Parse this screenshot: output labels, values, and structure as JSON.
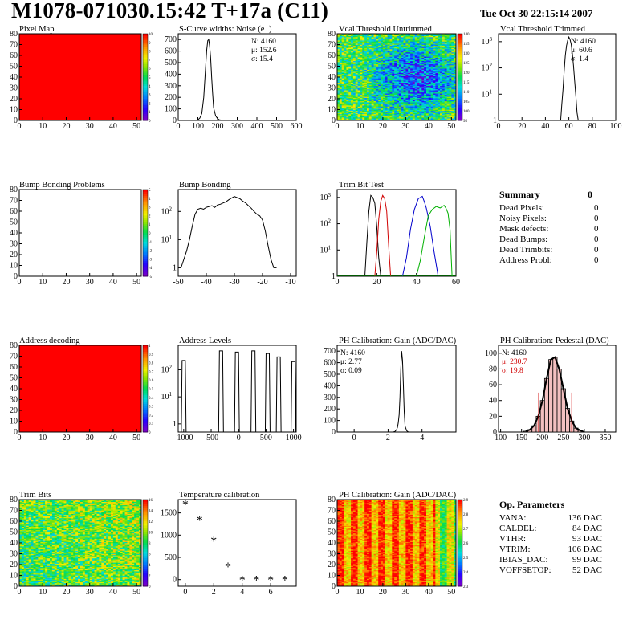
{
  "header": {
    "title": "M1078-071030.15:42 T+17a (C11)",
    "date": "Tue Oct 30 22:15:14 2007"
  },
  "chart_data": [
    {
      "id": "pixel-map",
      "type": "heatmap",
      "title": "Pixel Map",
      "xlim": [
        0,
        52
      ],
      "ylim": [
        0,
        80
      ],
      "xticks": [
        0,
        10,
        20,
        30,
        40,
        50
      ],
      "yticks": [
        0,
        10,
        20,
        30,
        40,
        50,
        60,
        70,
        80
      ],
      "fill": "uniform",
      "fill_level": 10,
      "palette_ticks": [
        "10",
        "9",
        "8",
        "7",
        "6",
        "5",
        "4",
        "3",
        "2",
        "1",
        "0"
      ]
    },
    {
      "id": "scurve-noise",
      "type": "line",
      "title": "S-Curve widths: Noise (e⁻)",
      "xlim": [
        0,
        600
      ],
      "ylim": [
        0,
        750
      ],
      "xticks": [
        0,
        100,
        200,
        300,
        400,
        500,
        600
      ],
      "yticks": [
        0,
        100,
        200,
        300,
        400,
        500,
        600,
        700
      ],
      "x": [
        90,
        100,
        110,
        120,
        130,
        140,
        145,
        150,
        155,
        160,
        165,
        170,
        175,
        180,
        190,
        200,
        210,
        220,
        230,
        240,
        260
      ],
      "y": [
        0,
        5,
        20,
        60,
        200,
        480,
        610,
        690,
        700,
        640,
        540,
        380,
        230,
        110,
        40,
        15,
        5,
        3,
        2,
        1,
        0
      ],
      "stats": [
        {
          "label": "N: 4160"
        },
        {
          "label": "μ: 152.6"
        },
        {
          "label": "σ: 15.4"
        }
      ]
    },
    {
      "id": "vcal-untrimmed",
      "type": "heatmap",
      "title": "Vcal Threshold Untrimmed",
      "xlim": [
        0,
        52
      ],
      "ylim": [
        0,
        80
      ],
      "xticks": [
        0,
        10,
        20,
        30,
        40,
        50
      ],
      "yticks": [
        0,
        10,
        20,
        30,
        40,
        50,
        60,
        70,
        80
      ],
      "fill": "noise-threshold",
      "palette_ticks": [
        "140",
        "135",
        "130",
        "125",
        "120",
        "115",
        "110",
        "105",
        "100",
        "95"
      ]
    },
    {
      "id": "vcal-trimmed",
      "type": "line",
      "title": "Vcal Threshold Trimmed",
      "logy": true,
      "xlim": [
        0,
        100
      ],
      "ylim": [
        1,
        2000
      ],
      "xticks": [
        0,
        20,
        40,
        60,
        80,
        100
      ],
      "yticks": [
        1,
        10,
        100,
        1000
      ],
      "x": [
        52,
        53,
        54,
        55,
        56,
        57,
        58,
        59,
        60,
        61,
        62,
        63,
        64,
        65,
        66,
        67,
        68
      ],
      "y": [
        1,
        1,
        4,
        15,
        80,
        300,
        700,
        1100,
        1500,
        1200,
        800,
        350,
        120,
        30,
        8,
        2,
        1
      ],
      "stats": [
        {
          "label": "N: 4160"
        },
        {
          "label": "μ: 60.6"
        },
        {
          "label": "σ:  1.4"
        }
      ]
    },
    {
      "id": "bump-problems",
      "type": "heatmap",
      "title": "Bump Bonding Problems",
      "xlim": [
        0,
        52
      ],
      "ylim": [
        0,
        80
      ],
      "xticks": [
        0,
        10,
        20,
        30,
        40,
        50
      ],
      "yticks": [
        0,
        10,
        20,
        30,
        40,
        50,
        60,
        70,
        80
      ],
      "fill": "empty",
      "palette_ticks": [
        "5",
        "4",
        "3",
        "2",
        "1",
        "0",
        "-1",
        "-2",
        "-3",
        "-4",
        "-5"
      ]
    },
    {
      "id": "bump-bonding",
      "type": "line",
      "title": "Bump Bonding",
      "logy": true,
      "xlim": [
        -50,
        -8
      ],
      "ylim": [
        0.5,
        600
      ],
      "xticks": [
        -50,
        -40,
        -30,
        -20,
        -10
      ],
      "yticks": [
        1,
        10,
        100
      ],
      "x": [
        -49,
        -48,
        -47,
        -46,
        -45,
        -44,
        -43,
        -42,
        -41,
        -40,
        -39,
        -38,
        -37,
        -36,
        -35,
        -34,
        -33,
        -32,
        -31,
        -30,
        -29,
        -28,
        -27,
        -26,
        -25,
        -24,
        -23,
        -22,
        -21,
        -20,
        -19,
        -18,
        -17,
        -16,
        -15
      ],
      "y": [
        1,
        2,
        4,
        10,
        30,
        80,
        120,
        130,
        120,
        140,
        150,
        160,
        140,
        170,
        180,
        200,
        220,
        260,
        300,
        340,
        310,
        280,
        230,
        200,
        160,
        130,
        100,
        80,
        70,
        50,
        20,
        6,
        2,
        1,
        1
      ]
    },
    {
      "id": "trim-bit-test",
      "type": "line",
      "title": "Trim Bit Test",
      "logy": true,
      "xlim": [
        0,
        60
      ],
      "ylim": [
        1,
        2000
      ],
      "xticks": [
        0,
        20,
        40,
        60
      ],
      "yticks": [
        1,
        10,
        100,
        1000
      ],
      "series": [
        {
          "color": "#000000",
          "x": [
            14,
            15,
            16,
            17,
            18,
            19,
            20,
            21,
            22
          ],
          "y": [
            1,
            20,
            300,
            1200,
            1000,
            600,
            80,
            5,
            1
          ]
        },
        {
          "color": "#d00000",
          "x": [
            19,
            20,
            21,
            22,
            23,
            24,
            25,
            26,
            27
          ],
          "y": [
            1,
            8,
            150,
            700,
            1200,
            900,
            300,
            15,
            1
          ]
        },
        {
          "color": "#0000cc",
          "x": [
            33,
            35,
            37,
            39,
            41,
            43,
            44,
            45,
            47,
            49,
            51
          ],
          "y": [
            1,
            5,
            60,
            350,
            900,
            1100,
            700,
            400,
            80,
            8,
            1
          ]
        },
        {
          "color": "#00b000",
          "x": [
            40,
            42,
            44,
            46,
            48,
            50,
            52,
            54,
            55,
            56,
            57,
            58
          ],
          "y": [
            1,
            4,
            30,
            200,
            350,
            450,
            400,
            500,
            380,
            250,
            60,
            1
          ]
        }
      ]
    },
    {
      "id": "address-decoding",
      "type": "heatmap",
      "title": "Address decoding",
      "xlim": [
        0,
        52
      ],
      "ylim": [
        0,
        80
      ],
      "xticks": [
        0,
        10,
        20,
        30,
        40,
        50
      ],
      "yticks": [
        0,
        10,
        20,
        30,
        40,
        50,
        60,
        70,
        80
      ],
      "fill": "uniform",
      "fill_level": 1,
      "palette_ticks": [
        "1",
        "0.9",
        "0.8",
        "0.7",
        "0.6",
        "0.5",
        "0.4",
        "0.3",
        "0.2",
        "0.1",
        "0"
      ]
    },
    {
      "id": "address-levels",
      "type": "line",
      "title": "Address Levels",
      "logy": true,
      "xlim": [
        -1100,
        1050
      ],
      "ylim": [
        0.5,
        800
      ],
      "xticks": [
        -1000,
        -500,
        0,
        500,
        1000
      ],
      "yticks": [
        1,
        10,
        100
      ],
      "peaks": [
        {
          "x": -1000,
          "h": 220
        },
        {
          "x": -320,
          "h": 500
        },
        {
          "x": -30,
          "h": 450
        },
        {
          "x": 270,
          "h": 500
        },
        {
          "x": 530,
          "h": 400
        },
        {
          "x": 730,
          "h": 300
        },
        {
          "x": 1000,
          "h": 200
        }
      ]
    },
    {
      "id": "ph-gain",
      "type": "line",
      "title": "PH Calibration: Gain (ADC/DAC)",
      "xlim": [
        -1,
        6
      ],
      "ylim": [
        0,
        750
      ],
      "xticks": [
        0,
        2,
        4
      ],
      "yticks": [
        0,
        100,
        200,
        300,
        400,
        500,
        600,
        700
      ],
      "x": [
        2.3,
        2.4,
        2.5,
        2.55,
        2.6,
        2.65,
        2.7,
        2.75,
        2.8,
        2.85,
        2.9,
        2.95,
        3.0,
        3.1,
        3.2
      ],
      "y": [
        0,
        5,
        20,
        40,
        80,
        150,
        300,
        550,
        700,
        620,
        400,
        180,
        50,
        10,
        0
      ],
      "stats": [
        {
          "label": "N: 4160"
        },
        {
          "label": "μ: 2.77"
        },
        {
          "label": "σ: 0.09"
        }
      ]
    },
    {
      "id": "ph-pedestal",
      "type": "bar",
      "title": "PH Calibration: Pedestal (DAC)",
      "xlim": [
        95,
        375
      ],
      "ylim": [
        0,
        110
      ],
      "xticks": [
        100,
        150,
        200,
        250,
        300,
        350
      ],
      "yticks": [
        0,
        20,
        40,
        60,
        80,
        100
      ],
      "x": [
        160,
        170,
        180,
        190,
        200,
        210,
        220,
        230,
        240,
        250,
        260,
        270,
        280,
        290,
        300
      ],
      "y": [
        1,
        3,
        8,
        20,
        40,
        68,
        92,
        95,
        80,
        55,
        30,
        14,
        5,
        2,
        0
      ],
      "cut_lines": [
        191,
        270
      ],
      "stats": [
        {
          "label": "N: 4160",
          "color": "#000000"
        },
        {
          "label": "μ: 230.7",
          "color": "#d00000"
        },
        {
          "label": "σ: 19.8",
          "color": "#d00000"
        }
      ]
    },
    {
      "id": "trim-bits",
      "type": "heatmap",
      "title": "Trim Bits",
      "xlim": [
        0,
        52
      ],
      "ylim": [
        0,
        80
      ],
      "xticks": [
        0,
        10,
        20,
        30,
        40,
        50
      ],
      "yticks": [
        0,
        10,
        20,
        30,
        40,
        50,
        60,
        70,
        80
      ],
      "fill": "trim-noise",
      "palette_ticks": [
        "16",
        "14",
        "12",
        "10",
        "8",
        "6",
        "4",
        "2",
        "0"
      ]
    },
    {
      "id": "temp-calibration",
      "type": "scatter",
      "title": "Temperature calibration",
      "xlim": [
        -0.5,
        7.8
      ],
      "ylim": [
        -150,
        1800
      ],
      "xticks": [
        0,
        2,
        4,
        6
      ],
      "yticks": [
        0,
        500,
        1000,
        1500
      ],
      "x": [
        0,
        1,
        2,
        3,
        4,
        5,
        6,
        7
      ],
      "y": [
        1700,
        1350,
        880,
        300,
        0,
        0,
        0,
        0
      ]
    },
    {
      "id": "ph-gain-map",
      "type": "heatmap",
      "title": "PH Calibration: Gain (ADC/DAC)",
      "xlim": [
        0,
        52
      ],
      "ylim": [
        0,
        80
      ],
      "xticks": [
        0,
        10,
        20,
        30,
        40,
        50
      ],
      "yticks": [
        0,
        10,
        20,
        30,
        40,
        50,
        60,
        70,
        80
      ],
      "fill": "gain-columns",
      "palette_ticks": [
        "2.9",
        "2.8",
        "2.7",
        "2.6",
        "2.5",
        "2.4",
        "2.3"
      ]
    }
  ],
  "summary": {
    "heading": "Summary",
    "total": "0",
    "rows": [
      {
        "label": "Dead Pixels:",
        "value": "0"
      },
      {
        "label": "Noisy Pixels:",
        "value": "0"
      },
      {
        "label": "Mask defects:",
        "value": "0"
      },
      {
        "label": "Dead Bumps:",
        "value": "0"
      },
      {
        "label": "Dead Trimbits:",
        "value": "0"
      },
      {
        "label": "Address Probl:",
        "value": "0"
      }
    ]
  },
  "op_params": {
    "heading": "Op. Parameters",
    "rows": [
      {
        "label": "VANA:",
        "value": "136 DAC"
      },
      {
        "label": "CALDEL:",
        "value": "84 DAC"
      },
      {
        "label": "VTHR:",
        "value": "93 DAC"
      },
      {
        "label": "VTRIM:",
        "value": "106 DAC"
      },
      {
        "label": "IBIAS_DAC:",
        "value": "99 DAC"
      },
      {
        "label": "VOFFSETOP:",
        "value": "52 DAC"
      }
    ]
  }
}
